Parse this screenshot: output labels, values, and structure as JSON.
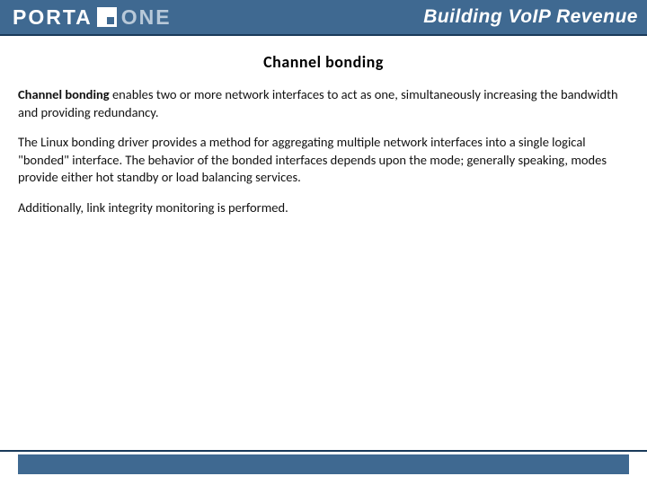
{
  "header": {
    "logo_porta": "PORTA",
    "logo_one": "ONE",
    "tagline": "Building VoIP Revenue"
  },
  "content": {
    "title": "Channel bonding",
    "para1_bold": "Channel bonding",
    "para1_rest": " enables two or more network interfaces to act as one, simultaneously increasing the bandwidth and providing redundancy.",
    "para2": "The Linux bonding driver provides a method for aggregating multiple network interfaces into a single logical \"bonded\" interface. The behavior of the bonded interfaces depends upon the mode; generally speaking, modes provide either hot standby or load balancing services.",
    "para3": "Additionally, link integrity monitoring is performed."
  },
  "colors": {
    "header_bg": "#3f6991",
    "rule": "#1a3a5a",
    "logo_one": "#b8c9d9"
  }
}
